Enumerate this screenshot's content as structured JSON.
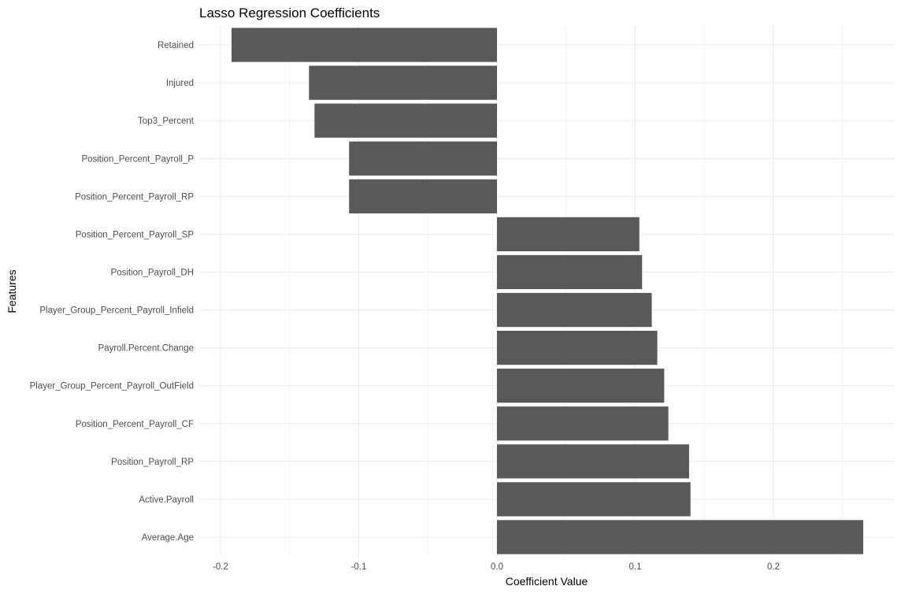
{
  "chart_data": {
    "type": "bar",
    "orientation": "horizontal",
    "title": "Lasso Regression Coefficients",
    "xlabel": "Coefficient Value",
    "ylabel": "Features",
    "xlim": [
      -0.2,
      0.265
    ],
    "x_ticks": [
      -0.2,
      -0.1,
      0.0,
      0.1,
      0.2
    ],
    "x_tick_labels": [
      "-0.2",
      "-0.1",
      "0.0",
      "0.1",
      "0.2"
    ],
    "grid": true,
    "bar_color": "#595959",
    "categories": [
      "Retained",
      "Injured",
      "Top3_Percent",
      "Position_Percent_Payroll_P",
      "Position_Percent_Payroll_RP",
      "Position_Percent_Payroll_SP",
      "Position_Payroll_DH",
      "Player_Group_Percent_Payroll_Infield",
      "Payroll.Percent.Change",
      "Player_Group_Percent_Payroll_OutField",
      "Position_Percent_Payroll_CF",
      "Position_Payroll_RP",
      "Active.Payroll",
      "Average.Age"
    ],
    "values": [
      -0.192,
      -0.136,
      -0.132,
      -0.107,
      -0.107,
      0.103,
      0.105,
      0.112,
      0.116,
      0.121,
      0.124,
      0.139,
      0.14,
      0.265
    ]
  }
}
